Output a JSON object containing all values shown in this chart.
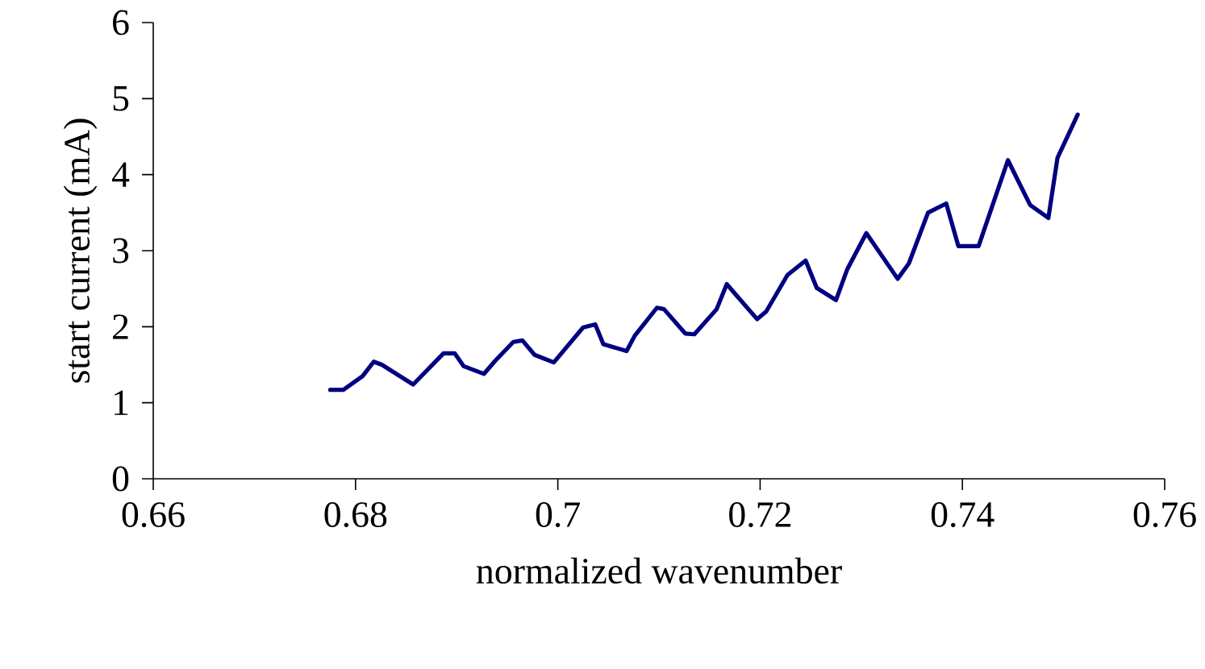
{
  "chart_data": {
    "type": "line",
    "xlabel": "normalized wavenumber",
    "ylabel": "start current (mA)",
    "xlim": [
      0.66,
      0.76
    ],
    "xticks": [
      0.66,
      0.68,
      0.7,
      0.72,
      0.74,
      0.76
    ],
    "ylim": [
      0,
      6
    ],
    "yticks": [
      0,
      1,
      2,
      3,
      4,
      5,
      6
    ],
    "line_style": "solid",
    "series": [
      {
        "color": "#000080",
        "x": [
          0.6775,
          0.6788,
          0.6807,
          0.6818,
          0.6826,
          0.6857,
          0.6887,
          0.6898,
          0.6907,
          0.6927,
          0.6938,
          0.6956,
          0.6965,
          0.6977,
          0.6996,
          0.7025,
          0.7037,
          0.7045,
          0.7068,
          0.7076,
          0.7098,
          0.7105,
          0.7126,
          0.7135,
          0.7157,
          0.7167,
          0.7178,
          0.7197,
          0.7206,
          0.7227,
          0.7245,
          0.7256,
          0.7275,
          0.7286,
          0.7305,
          0.7336,
          0.7347,
          0.7366,
          0.7384,
          0.7396,
          0.7416,
          0.7445,
          0.7467,
          0.7485,
          0.7494,
          0.7514
        ],
        "values": [
          1.17,
          1.17,
          1.35,
          1.54,
          1.5,
          1.24,
          1.65,
          1.65,
          1.48,
          1.38,
          1.55,
          1.8,
          1.82,
          1.63,
          1.53,
          1.99,
          2.03,
          1.77,
          1.68,
          1.88,
          2.25,
          2.23,
          1.91,
          1.9,
          2.23,
          2.56,
          2.39,
          2.1,
          2.2,
          2.68,
          2.87,
          2.51,
          2.35,
          2.75,
          3.23,
          2.63,
          2.83,
          3.5,
          3.62,
          3.06,
          3.06,
          4.19,
          3.6,
          3.43,
          4.22,
          4.79
        ]
      }
    ]
  }
}
